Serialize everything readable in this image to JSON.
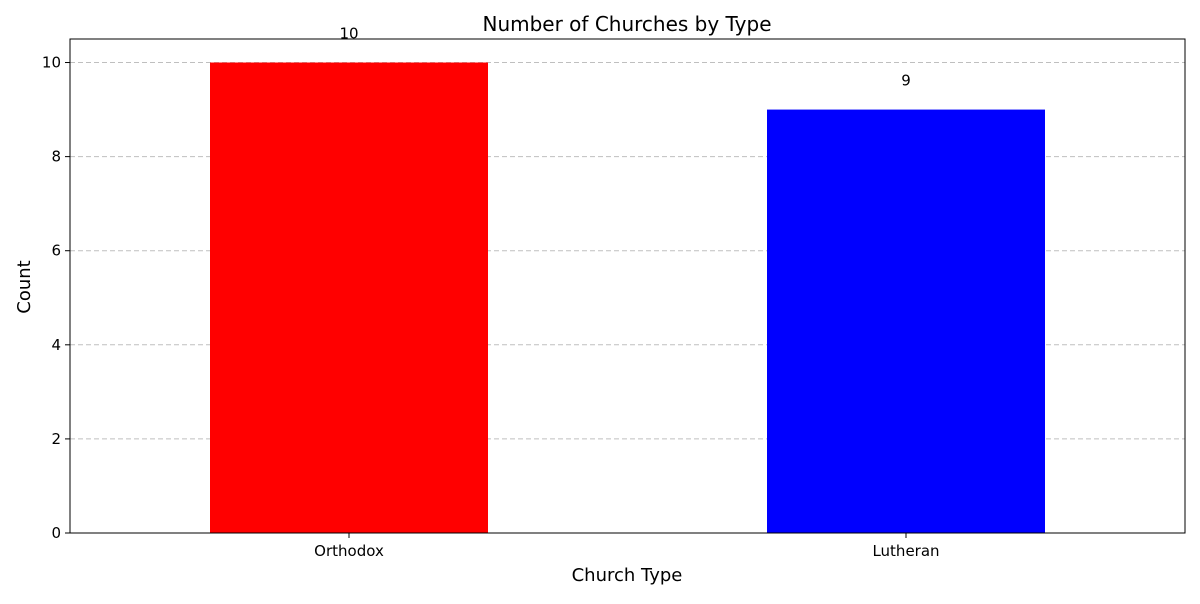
{
  "chart_data": {
    "type": "bar",
    "title": "Number of Churches by Type",
    "xlabel": "Church Type",
    "ylabel": "Count",
    "categories": [
      "Orthodox",
      "Lutheran"
    ],
    "values": [
      10,
      9
    ],
    "data_labels": [
      "10",
      "9"
    ],
    "colors": [
      "#ff0000",
      "#0000ff"
    ],
    "ylim": [
      0,
      10.5
    ],
    "yticks": [
      0,
      2,
      4,
      6,
      8,
      10
    ],
    "ytick_labels": [
      "0",
      "2",
      "4",
      "6",
      "8",
      "10"
    ],
    "grid": "y-dashed",
    "legend": "none"
  }
}
